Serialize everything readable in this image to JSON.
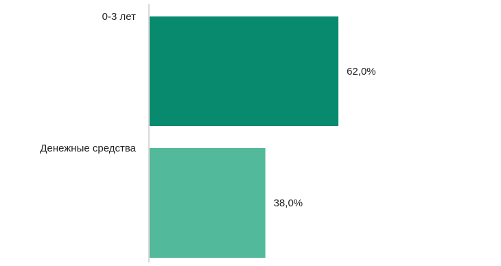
{
  "chart_data": {
    "type": "bar",
    "orientation": "horizontal",
    "categories": [
      "0-3 лет",
      "Денежные средства"
    ],
    "values": [
      62.0,
      38.0
    ],
    "value_labels": [
      "62,0%",
      "38,0%"
    ],
    "unit": "%",
    "xlim": [
      0,
      100
    ],
    "colors": [
      "#078A6D",
      "#52B99A"
    ],
    "axis_color": "#D9D9D9",
    "grid": false,
    "legend": "none",
    "title": "",
    "xlabel": "",
    "ylabel": ""
  }
}
